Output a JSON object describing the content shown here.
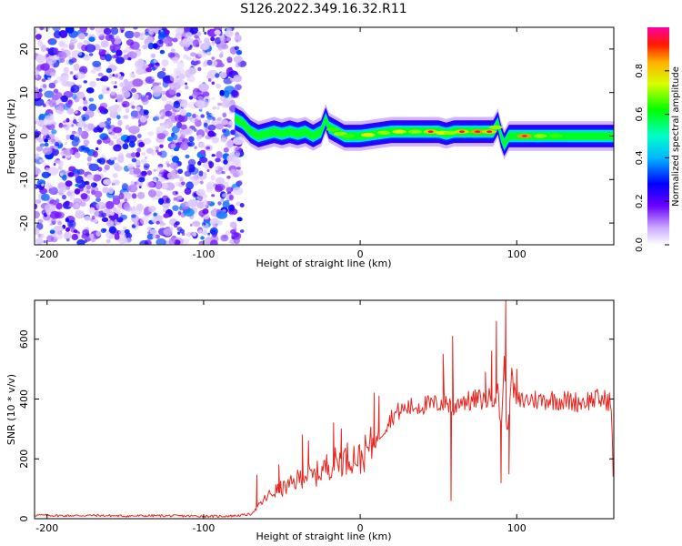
{
  "title": "S126.2022.349.16.32.R11",
  "colors": {
    "snr_line": "#e8251f",
    "noise": "#8a2be2",
    "axis": "#000000"
  },
  "chart_data": [
    {
      "type": "heatmap",
      "xlabel": "Height of straight line (km)",
      "ylabel": "Frequency (Hz)",
      "xlim": [
        -208,
        162
      ],
      "ylim": [
        -25,
        25
      ],
      "xticks": [
        "-200",
        "-100",
        "0",
        "100"
      ],
      "yticks": [
        "-20",
        "-10",
        "0",
        "10",
        "20"
      ],
      "colorbar": {
        "label": "Normalized spectral amplitude",
        "range": [
          0.0,
          1.0
        ],
        "ticks": [
          "0.0",
          "0.2",
          "0.4",
          "0.6",
          "0.8"
        ],
        "colormap": "rainbow (white → purple → blue → cyan → green → yellow → red → magenta)"
      },
      "noise_region_x": [
        -208,
        -80
      ],
      "signal_track": {
        "x": [
          -80,
          -75,
          -70,
          -65,
          -60,
          -55,
          -50,
          -45,
          -40,
          -35,
          -30,
          -25,
          -22,
          -20,
          -15,
          -10,
          -5,
          0,
          10,
          20,
          30,
          40,
          50,
          55,
          60,
          70,
          80,
          85,
          88,
          90,
          92,
          95,
          100,
          110,
          120,
          130,
          140,
          150,
          162
        ],
        "freq_hz": [
          4,
          3,
          1,
          0,
          0.5,
          1,
          0.5,
          1,
          0.5,
          1,
          0,
          1,
          4,
          2,
          1,
          0,
          0,
          0,
          0.5,
          1,
          1,
          1,
          1,
          0.5,
          1,
          1,
          1,
          1,
          3,
          0,
          -2,
          0,
          0,
          0,
          0,
          0,
          0,
          0,
          0
        ],
        "amplitude": [
          0.35,
          0.4,
          0.55,
          0.6,
          0.55,
          0.6,
          0.55,
          0.6,
          0.55,
          0.6,
          0.5,
          0.55,
          0.6,
          0.65,
          0.7,
          0.65,
          0.6,
          0.75,
          0.7,
          0.75,
          0.7,
          0.8,
          0.75,
          0.7,
          0.8,
          0.85,
          0.8,
          0.7,
          0.6,
          0.5,
          0.45,
          0.6,
          0.85,
          0.7,
          0.65,
          0.6,
          0.6,
          0.55,
          0.5
        ]
      }
    },
    {
      "type": "line",
      "xlabel": "Height of straight line (km)",
      "ylabel": "SNR (10 * v/v)",
      "xlim": [
        -208,
        162
      ],
      "ylim": [
        0,
        730
      ],
      "xticks": [
        "-200",
        "-100",
        "0",
        "100"
      ],
      "yticks": [
        "0",
        "200",
        "400",
        "600"
      ],
      "series": [
        {
          "x": [
            -208,
            -190,
            -170,
            -150,
            -130,
            -110,
            -90,
            -80,
            -75,
            -70,
            -65,
            -60,
            -55,
            -50,
            -45,
            -40,
            -35,
            -30,
            -25,
            -20,
            -15,
            -10,
            -5,
            0,
            5,
            10,
            15,
            20,
            25,
            30,
            35,
            40,
            45,
            50,
            55,
            58,
            60,
            62,
            65,
            70,
            75,
            80,
            85,
            88,
            90,
            92,
            94,
            96,
            100,
            105,
            110,
            115,
            120,
            130,
            140,
            150,
            160,
            162
          ],
          "y": [
            12,
            10,
            11,
            9,
            10,
            9,
            8,
            10,
            12,
            15,
            40,
            70,
            90,
            100,
            110,
            130,
            150,
            140,
            160,
            180,
            190,
            200,
            210,
            200,
            230,
            260,
            300,
            340,
            360,
            370,
            375,
            380,
            380,
            385,
            390,
            380,
            350,
            390,
            400,
            390,
            400,
            395,
            410,
            420,
            300,
            520,
            250,
            480,
            390,
            395,
            400,
            395,
            400,
            395,
            390,
            400,
            395,
            130
          ],
          "spikes": [
            {
              "x": -66,
              "y": 145
            },
            {
              "x": -52,
              "y": 180
            },
            {
              "x": -37,
              "y": 280
            },
            {
              "x": -33,
              "y": 260
            },
            {
              "x": -17,
              "y": 320
            },
            {
              "x": -12,
              "y": 300
            },
            {
              "x": 9,
              "y": 420
            },
            {
              "x": 12,
              "y": 410
            },
            {
              "x": 53,
              "y": 550
            },
            {
              "x": 58,
              "y": 60
            },
            {
              "x": 59,
              "y": 610
            },
            {
              "x": 80,
              "y": 490
            },
            {
              "x": 84,
              "y": 560
            },
            {
              "x": 87,
              "y": 660
            },
            {
              "x": 90,
              "y": 120
            },
            {
              "x": 93,
              "y": 730
            },
            {
              "x": 95,
              "y": 150
            },
            {
              "x": 100,
              "y": 500
            }
          ]
        }
      ]
    }
  ]
}
